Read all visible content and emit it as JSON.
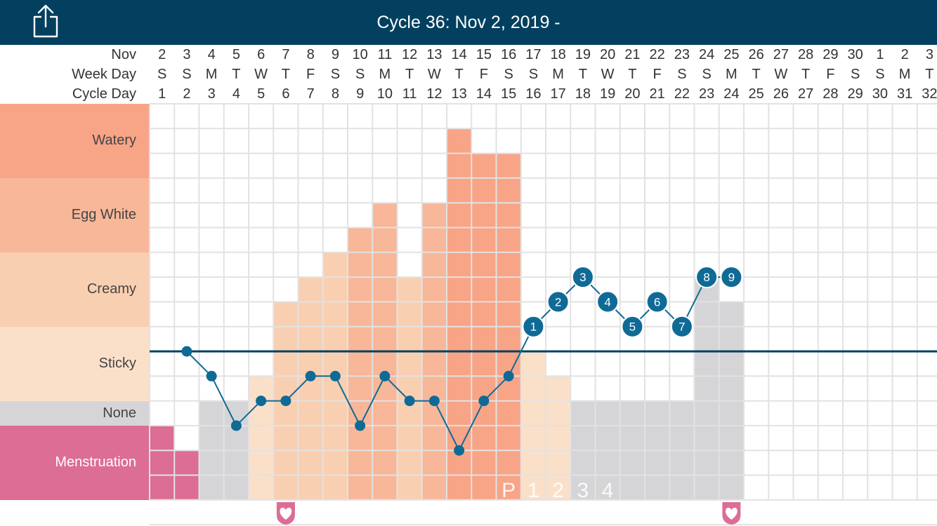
{
  "header": {
    "title": "Cycle 36: Nov 2, 2019 -",
    "share_icon": "share-icon"
  },
  "row_labels": {
    "month": "Nov",
    "weekday": "Week Day",
    "cycle_day": "Cycle Day"
  },
  "colors": {
    "topbar": "#03405f",
    "watery": "#f8a487",
    "egg_white": "#f8b798",
    "creamy": "#f9cfb1",
    "sticky": "#fbe0c9",
    "none": "#d5d5d7",
    "menstruation": "#dc6d95",
    "temp_line": "#0f6a96",
    "coverline": "#03405f",
    "intercourse": "#dc6d95"
  },
  "chart_data": {
    "type": "line",
    "title": "Cycle 36: Nov 2, 2019 -",
    "dates": [
      "2",
      "3",
      "4",
      "5",
      "6",
      "7",
      "8",
      "9",
      "10",
      "11",
      "12",
      "13",
      "14",
      "15",
      "16",
      "17",
      "18",
      "19",
      "20",
      "21",
      "22",
      "23",
      "24",
      "25",
      "26",
      "27",
      "28",
      "29",
      "30",
      "1",
      "2",
      "3"
    ],
    "weekdays": [
      "S",
      "S",
      "M",
      "T",
      "W",
      "T",
      "F",
      "S",
      "S",
      "M",
      "T",
      "W",
      "T",
      "F",
      "S",
      "S",
      "M",
      "T",
      "W",
      "T",
      "F",
      "S",
      "S",
      "M",
      "T",
      "W",
      "T",
      "F",
      "S",
      "S",
      "M",
      "T"
    ],
    "cycle_days": [
      "1",
      "2",
      "3",
      "4",
      "5",
      "6",
      "7",
      "8",
      "9",
      "10",
      "11",
      "12",
      "13",
      "14",
      "15",
      "16",
      "17",
      "18",
      "19",
      "20",
      "21",
      "22",
      "23",
      "24",
      "25",
      "26",
      "27",
      "28",
      "29",
      "30",
      "31",
      "32"
    ],
    "categories": [
      "Watery",
      "Egg White",
      "Creamy",
      "Sticky",
      "None",
      "Menstruation"
    ],
    "observations": [
      {
        "day": 1,
        "type": "menstruation",
        "level": 3
      },
      {
        "day": 2,
        "type": "menstruation",
        "level": 2
      },
      {
        "day": 3,
        "type": "none",
        "level": 4
      },
      {
        "day": 4,
        "type": "none",
        "level": 4
      },
      {
        "day": 5,
        "type": "sticky",
        "level": 5
      },
      {
        "day": 6,
        "type": "creamy",
        "level": 8
      },
      {
        "day": 7,
        "type": "creamy",
        "level": 9
      },
      {
        "day": 8,
        "type": "creamy",
        "level": 10
      },
      {
        "day": 9,
        "type": "egg_white",
        "level": 11
      },
      {
        "day": 10,
        "type": "egg_white",
        "level": 12
      },
      {
        "day": 11,
        "type": "creamy",
        "level": 9
      },
      {
        "day": 12,
        "type": "egg_white",
        "level": 12
      },
      {
        "day": 13,
        "type": "watery",
        "level": 15
      },
      {
        "day": 14,
        "type": "watery",
        "level": 14
      },
      {
        "day": 15,
        "type": "watery",
        "level": 14
      },
      {
        "day": 16,
        "type": "sticky",
        "level": 6
      },
      {
        "day": 17,
        "type": "sticky",
        "level": 5
      },
      {
        "day": 18,
        "type": "none",
        "level": 4
      },
      {
        "day": 19,
        "type": "none",
        "level": 4
      },
      {
        "day": 20,
        "type": "none",
        "level": 4
      },
      {
        "day": 21,
        "type": "none",
        "level": 4
      },
      {
        "day": 22,
        "type": "none",
        "level": 4
      },
      {
        "day": 23,
        "type": "none",
        "level": 9
      },
      {
        "day": 24,
        "type": "none",
        "level": 8
      }
    ],
    "temperature": [
      {
        "day": 2,
        "level": 6
      },
      {
        "day": 3,
        "level": 5
      },
      {
        "day": 4,
        "level": 3
      },
      {
        "day": 5,
        "level": 4
      },
      {
        "day": 6,
        "level": 4
      },
      {
        "day": 7,
        "level": 5
      },
      {
        "day": 8,
        "level": 5
      },
      {
        "day": 9,
        "level": 3
      },
      {
        "day": 10,
        "level": 5
      },
      {
        "day": 11,
        "level": 4
      },
      {
        "day": 12,
        "level": 4
      },
      {
        "day": 13,
        "level": 2
      },
      {
        "day": 14,
        "level": 4
      },
      {
        "day": 15,
        "level": 5
      },
      {
        "day": 16,
        "level": 7,
        "label": "1"
      },
      {
        "day": 17,
        "level": 8,
        "label": "2"
      },
      {
        "day": 18,
        "level": 9,
        "label": "3"
      },
      {
        "day": 19,
        "level": 8,
        "label": "4"
      },
      {
        "day": 20,
        "level": 7,
        "label": "5"
      },
      {
        "day": 21,
        "level": 8,
        "label": "6"
      },
      {
        "day": 22,
        "level": 7,
        "label": "7"
      },
      {
        "day": 23,
        "level": 9,
        "label": "8"
      },
      {
        "day": 24,
        "level": 9,
        "label": "9"
      }
    ],
    "coverline_level": 6,
    "peak_labels": [
      {
        "day": 15,
        "text": "P"
      },
      {
        "day": 16,
        "text": "1"
      },
      {
        "day": 17,
        "text": "2"
      },
      {
        "day": 18,
        "text": "3"
      },
      {
        "day": 19,
        "text": "4"
      }
    ],
    "intercourse_days": [
      6,
      24
    ]
  }
}
